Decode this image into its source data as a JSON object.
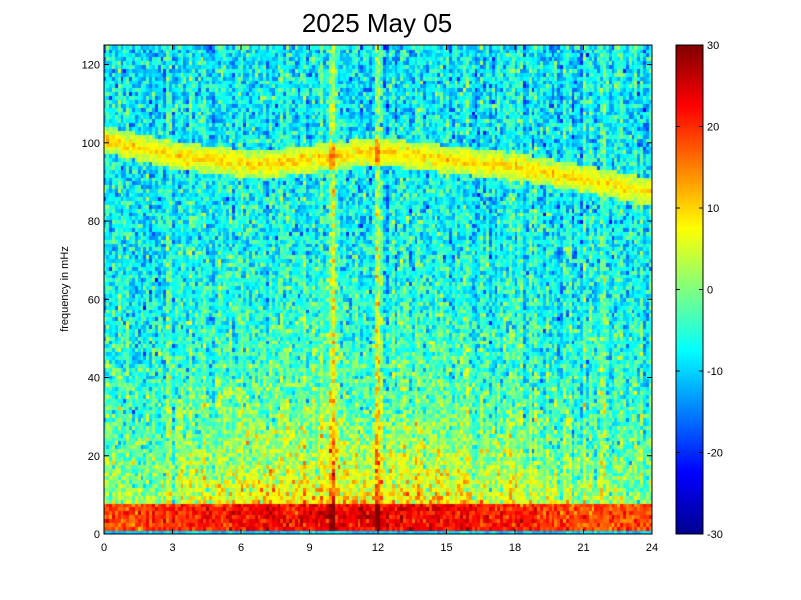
{
  "chart_data": {
    "type": "heatmap",
    "title": "2025 May 05",
    "xlabel": "",
    "ylabel": "frequency in mHz",
    "xlim": [
      0,
      24
    ],
    "ylim": [
      0,
      125
    ],
    "x_ticks": [
      "0",
      "3",
      "6",
      "9",
      "12",
      "15",
      "18",
      "21",
      "24"
    ],
    "y_ticks": [
      "0",
      "20",
      "40",
      "60",
      "80",
      "100",
      "120"
    ],
    "colorbar": {
      "colormap": "jet",
      "range": [
        -30,
        30
      ],
      "ticks": [
        "30",
        "20",
        "10",
        "0",
        "-10",
        "-20",
        "-30"
      ]
    },
    "grid": false,
    "features": {
      "background_level": -10,
      "low_frequency_band": {
        "freq_range_mHz": [
          1,
          8
        ],
        "level": 22
      },
      "broadband_activity": {
        "hour_range": [
          4,
          18
        ],
        "freq_range_mHz": [
          0,
          60
        ],
        "peak_level": 18
      },
      "tracking_ridge": {
        "hours": [
          0,
          3,
          6,
          7,
          9,
          12,
          15,
          18,
          21,
          24
        ],
        "freq_mHz": [
          101,
          97,
          95,
          94.5,
          96,
          98,
          96,
          94,
          91,
          87.5
        ],
        "level": 10
      },
      "vertical_streaks_hours": [
        10,
        12
      ],
      "bottom_edge_band_level": -10
    }
  }
}
